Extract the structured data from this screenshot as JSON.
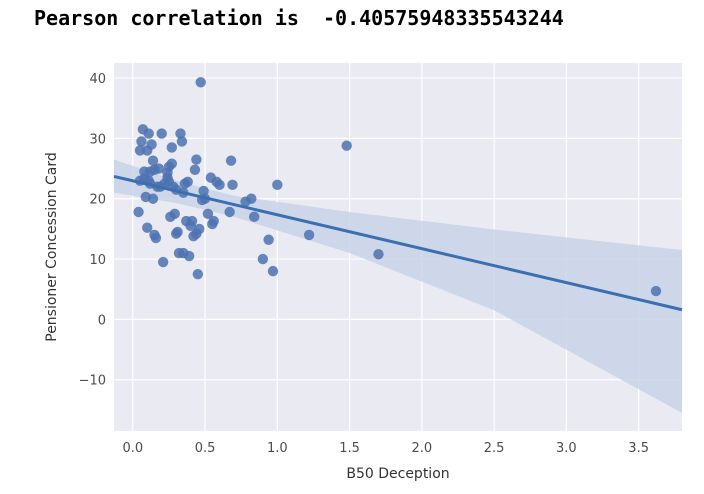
{
  "header": {
    "prefix": "Pearson correlation is",
    "value": "-0.40575948335543244"
  },
  "chart_data": {
    "type": "scatter",
    "title": "",
    "xlabel": "B50 Deception",
    "ylabel": "Pensioner Concession Card",
    "xlim": [
      -0.13,
      3.8
    ],
    "ylim": [
      -18.5,
      42.5
    ],
    "xticks": [
      "0.0",
      "0.5",
      "1.0",
      "1.5",
      "2.0",
      "2.5",
      "3.0",
      "3.5"
    ],
    "yticks": [
      "−10",
      "0",
      "10",
      "20",
      "30",
      "40"
    ],
    "grid": true,
    "background": "#eaeaf2",
    "point_color": "#4c72b0",
    "line_color": "#3a6fb0",
    "band_color": "#c9d3e8",
    "regression": {
      "x": [
        -0.13,
        3.8
      ],
      "y": [
        23.7,
        1.6
      ]
    },
    "ci_band": {
      "x": [
        -0.13,
        0.3,
        0.7,
        1.5,
        2.5,
        3.8
      ],
      "upper": [
        26.5,
        23.0,
        20.5,
        17.8,
        14.9,
        11.5
      ],
      "lower": [
        21.0,
        19.3,
        17.0,
        11.0,
        1.5,
        -15.5
      ]
    },
    "points": {
      "x": [
        0.04,
        0.05,
        0.07,
        0.08,
        0.09,
        0.1,
        0.11,
        0.12,
        0.13,
        0.14,
        0.15,
        0.16,
        0.17,
        0.18,
        0.06,
        0.1,
        0.12,
        0.15,
        0.19,
        0.2,
        0.21,
        0.22,
        0.24,
        0.25,
        0.26,
        0.27,
        0.28,
        0.29,
        0.3,
        0.31,
        0.32,
        0.33,
        0.34,
        0.35,
        0.36,
        0.37,
        0.38,
        0.39,
        0.4,
        0.41,
        0.42,
        0.43,
        0.44,
        0.45,
        0.46,
        0.47,
        0.48,
        0.49,
        0.5,
        0.52,
        0.54,
        0.55,
        0.56,
        0.58,
        0.6,
        0.67,
        0.68,
        0.69,
        0.78,
        0.82,
        0.84,
        0.9,
        0.94,
        0.97,
        1.0,
        1.22,
        1.48,
        1.7,
        3.62,
        0.08,
        0.11,
        0.27,
        0.3,
        0.35,
        0.44,
        0.25,
        0.24,
        0.05,
        0.14
      ],
      "y": [
        17.8,
        28.0,
        31.5,
        24.5,
        20.3,
        28.0,
        30.8,
        24.5,
        29.0,
        26.3,
        14.0,
        13.5,
        22.0,
        25.0,
        29.5,
        15.2,
        22.5,
        24.8,
        22.0,
        30.8,
        9.5,
        22.5,
        23.5,
        25.3,
        17.0,
        28.5,
        22.0,
        17.5,
        21.5,
        14.5,
        11.0,
        30.8,
        29.5,
        21.0,
        22.5,
        16.3,
        22.8,
        10.5,
        15.5,
        16.3,
        13.8,
        24.8,
        14.2,
        7.5,
        15.0,
        39.3,
        19.8,
        21.3,
        20.0,
        17.5,
        23.5,
        15.8,
        16.3,
        22.8,
        22.3,
        17.8,
        26.3,
        22.3,
        19.5,
        20.0,
        17.0,
        10.0,
        13.2,
        8.0,
        22.3,
        14.0,
        28.8,
        10.8,
        4.7,
        23.3,
        23.0,
        25.8,
        14.2,
        11.0,
        26.5,
        22.8,
        24.3,
        23.0,
        20.0
      ]
    }
  }
}
